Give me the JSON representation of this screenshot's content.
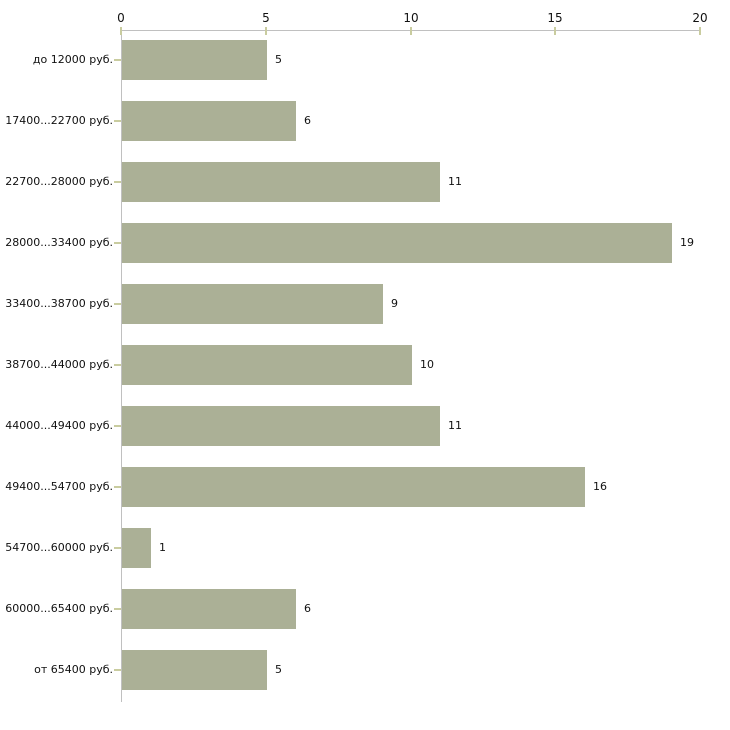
{
  "chart_data": {
    "type": "bar",
    "orientation": "horizontal",
    "title": "",
    "categories": [
      "до 12000 руб.",
      "17400...22700 руб.",
      "22700...28000 руб.",
      "28000...33400 руб.",
      "33400...38700 руб.",
      "38700...44000 руб.",
      "44000...49400 руб.",
      "49400...54700 руб.",
      "54700...60000 руб.",
      "60000...65400 руб.",
      "от 65400 руб."
    ],
    "values": [
      5,
      6,
      11,
      19,
      9,
      10,
      11,
      16,
      1,
      6,
      5
    ],
    "x_ticks": [
      0,
      5,
      10,
      15,
      20
    ],
    "xlim": [
      0,
      20
    ],
    "grid": false,
    "legend": false,
    "value_labels": true,
    "axis_position": "top",
    "colors": {
      "bar": "#abb096",
      "axis": "#c0c0c0",
      "tick": "#c9cc9f",
      "text": "#111111",
      "background": "#ffffff"
    }
  }
}
